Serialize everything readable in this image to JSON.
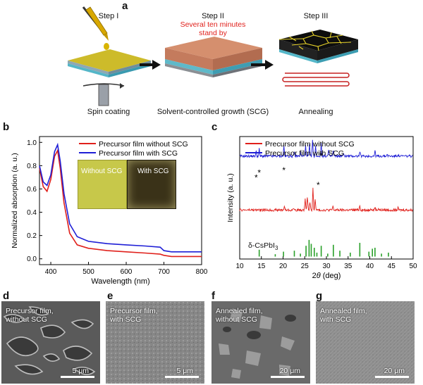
{
  "panel_a": {
    "letter": "a",
    "step1": "Step I",
    "step2": "Step II",
    "step3": "Step III",
    "note_line1": "Several ten minutes",
    "note_line2": "stand by",
    "caption1": "Spin coating",
    "caption2": "Solvent-controlled growth (SCG)",
    "caption3": "Annealing"
  },
  "panel_b": {
    "letter": "b",
    "inset_left": "Without SCG",
    "inset_right": "With SCG"
  },
  "panel_c": {
    "letter": "c",
    "ref_label": "δ-CsPbI",
    "ref_sub": "3"
  },
  "panel_d": {
    "letter": "d",
    "line1": "Precursor film,",
    "line2": "without SCG",
    "scale": "5 μm"
  },
  "panel_e": {
    "letter": "e",
    "line1": "Precursor film,",
    "line2": "with SCG",
    "scale": "5 μm"
  },
  "panel_f": {
    "letter": "f",
    "line1": "Annealed film,",
    "line2": "without SCG",
    "scale": "20 μm"
  },
  "panel_g": {
    "letter": "g",
    "line1": "Annealed film,",
    "line2": "with SCG",
    "scale": "20 μm"
  },
  "colors": {
    "red": "#e0201b",
    "blue": "#1f1fd6",
    "green": "#2aa02a"
  },
  "chart_data": [
    {
      "type": "line",
      "xlabel": "Wavelength (nm)",
      "ylabel": "Normalized absorption (a. u.)",
      "xlim": [
        370,
        800
      ],
      "ylim": [
        -0.05,
        1.05
      ],
      "xticks": [
        400,
        500,
        600,
        700,
        800
      ],
      "yticks": [
        0.0,
        0.2,
        0.4,
        0.6,
        0.8,
        1.0
      ],
      "ytick_labels": [
        "0.0",
        "0.2",
        "0.4",
        "0.6",
        "0.8",
        "1.0"
      ],
      "legend_position": "top-right",
      "series": [
        {
          "name": "Precursor film without SCG",
          "color": "#e0201b",
          "x": [
            370,
            380,
            390,
            400,
            410,
            418,
            425,
            435,
            450,
            470,
            500,
            550,
            600,
            650,
            690,
            700,
            720,
            760,
            800
          ],
          "y": [
            0.78,
            0.62,
            0.58,
            0.68,
            0.88,
            0.93,
            0.78,
            0.48,
            0.22,
            0.12,
            0.09,
            0.07,
            0.06,
            0.05,
            0.04,
            0.03,
            0.02,
            0.02,
            0.02
          ]
        },
        {
          "name": "Precursor film with SCG",
          "color": "#1f1fd6",
          "x": [
            370,
            380,
            390,
            400,
            410,
            418,
            425,
            435,
            450,
            470,
            500,
            550,
            600,
            650,
            690,
            700,
            720,
            760,
            800
          ],
          "y": [
            0.8,
            0.66,
            0.63,
            0.72,
            0.92,
            0.98,
            0.84,
            0.56,
            0.3,
            0.19,
            0.15,
            0.13,
            0.12,
            0.11,
            0.1,
            0.07,
            0.06,
            0.06,
            0.06
          ]
        }
      ]
    },
    {
      "type": "line",
      "xlabel": "2θ (deg)",
      "ylabel": "Intensity (a. u.)",
      "xlim": [
        10,
        50
      ],
      "xticks": [
        10,
        15,
        20,
        25,
        30,
        35,
        40,
        45,
        50
      ],
      "legend_position": "top-left",
      "annotations": [
        "*",
        "*",
        "*",
        "*",
        "*"
      ],
      "annotation_x": [
        13.8,
        14.5,
        20.2,
        28.1,
        28.8
      ],
      "series": [
        {
          "name": "Precursor film without SCG",
          "color": "#e0201b",
          "baseline": 0.4,
          "peaks_x": [
            20.3,
            22.5,
            25.1,
            25.6,
            26.2,
            26.9,
            27.4,
            31.5,
            37.7,
            40.2,
            41.2,
            42.0,
            46.5
          ],
          "peaks_h": [
            0.1,
            0.05,
            0.3,
            0.35,
            0.22,
            0.55,
            0.3,
            0.1,
            0.12,
            0.06,
            0.08,
            0.05,
            0.05
          ]
        },
        {
          "name": "Precursor film with SCG",
          "color": "#1f1fd6",
          "baseline": 0.84,
          "peaks_x": [
            13.8,
            14.5,
            20.2,
            22.6,
            24.0,
            25.2,
            26.1,
            26.8,
            27.5,
            28.8,
            30.5,
            31.6,
            34.0,
            37.7,
            41.2,
            44.0,
            46.5
          ],
          "peaks_h": [
            0.12,
            0.18,
            0.26,
            0.1,
            0.12,
            0.3,
            0.28,
            0.42,
            0.25,
            0.34,
            0.15,
            0.14,
            0.08,
            0.12,
            0.14,
            0.06,
            0.05
          ]
        },
        {
          "name": "δ-CsPbI3 reference",
          "color": "#2aa02a",
          "type": "bar",
          "x": [
            14.5,
            18.2,
            20.1,
            22.6,
            24.0,
            25.3,
            26.0,
            26.5,
            27.2,
            27.8,
            28.8,
            30.3,
            31.6,
            33.1,
            35.5,
            37.7,
            39.8,
            40.6,
            41.2,
            42.7,
            44.3
          ],
          "h": [
            0.35,
            0.12,
            0.25,
            0.3,
            0.15,
            0.55,
            0.85,
            0.65,
            0.45,
            0.2,
            0.55,
            0.15,
            0.6,
            0.3,
            0.2,
            0.7,
            0.25,
            0.4,
            0.45,
            0.15,
            0.2
          ]
        }
      ]
    }
  ]
}
